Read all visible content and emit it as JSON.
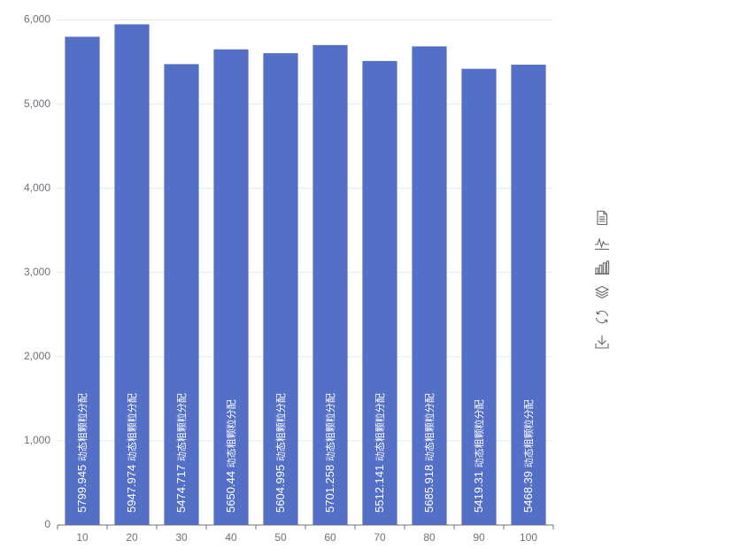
{
  "chart_data": {
    "type": "bar",
    "categories": [
      "10",
      "20",
      "30",
      "40",
      "50",
      "60",
      "70",
      "80",
      "90",
      "100"
    ],
    "series": [
      {
        "name": "动态粗颗粒分配",
        "values": [
          5799.945,
          5947.974,
          5474.717,
          5650.44,
          5604.995,
          5701.258,
          5512.141,
          5685.918,
          5419.31,
          5468.39
        ],
        "labels": [
          "5799.945",
          "5947.974",
          "5474.717",
          "5650.44",
          "5604.995",
          "5701.258",
          "5512.141",
          "5685.918",
          "5419.31",
          "5468.39"
        ]
      }
    ],
    "y_ticks": [
      "0",
      "1,000",
      "2,000",
      "3,000",
      "4,000",
      "5,000",
      "6,000"
    ],
    "ylim": [
      0,
      6000
    ],
    "grid": true,
    "bar_color": "#5470c6"
  },
  "toolbox": [
    {
      "icon": "data-view-icon",
      "title": "data-view"
    },
    {
      "icon": "line-chart-icon",
      "title": "line"
    },
    {
      "icon": "bar-chart-icon",
      "title": "bar"
    },
    {
      "icon": "stack-icon",
      "title": "stack"
    },
    {
      "icon": "restore-icon",
      "title": "restore"
    },
    {
      "icon": "save-image-icon",
      "title": "save-as-image"
    }
  ]
}
